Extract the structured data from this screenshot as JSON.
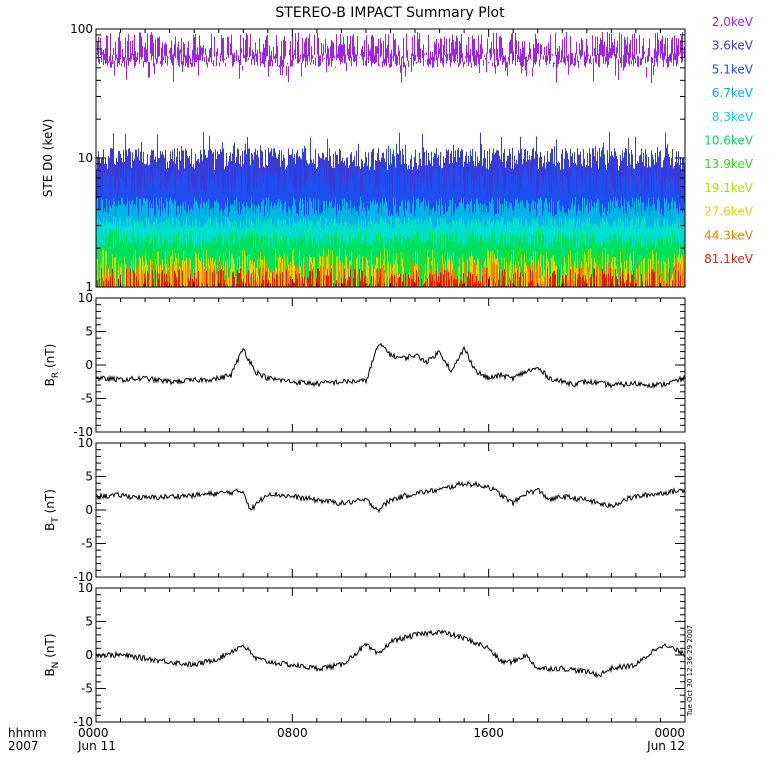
{
  "title": "STEREO-B IMPACT Summary Plot",
  "timestamp_stamp": "Tue Oct 30 12:36:29 2007",
  "x_axis": {
    "left_label_top": "hhmm",
    "left_label_bottom": "2007",
    "ticks": [
      {
        "t": 0,
        "top": "0000",
        "bottom": "Jun 11"
      },
      {
        "t": 8,
        "top": "0800",
        "bottom": ""
      },
      {
        "t": 16,
        "top": "1600",
        "bottom": ""
      },
      {
        "t": 24,
        "top": "0000",
        "bottom": "Jun 12"
      }
    ],
    "range_hours": [
      0,
      24
    ]
  },
  "chart_data": [
    {
      "type": "line",
      "ylabel": "STE D0 (keV)",
      "yscale": "log",
      "ylim": [
        1,
        100
      ],
      "yticks": [
        "1",
        "10",
        "100"
      ],
      "legend_placement": "right",
      "series": [
        {
          "name": "2.0keV",
          "color": "#a020f0",
          "level_range": [
            50,
            95
          ]
        },
        {
          "name": "3.6keV",
          "color": "#3a3ad8",
          "level_range": [
            8,
            12
          ]
        },
        {
          "name": "5.1keV",
          "color": "#1e4ef0",
          "level_range": [
            5,
            9
          ]
        },
        {
          "name": "6.7keV",
          "color": "#00b4e6",
          "level_range": [
            3.5,
            5
          ]
        },
        {
          "name": "8.3keV",
          "color": "#00e0d0",
          "level_range": [
            2.8,
            3.5
          ]
        },
        {
          "name": "10.6keV",
          "color": "#00e060",
          "level_range": [
            2,
            2.8
          ]
        },
        {
          "name": "13.9keV",
          "color": "#30e020",
          "level_range": [
            1,
            2
          ]
        },
        {
          "name": "19.1keV",
          "color": "#b0e000",
          "level_range": [
            1,
            2
          ]
        },
        {
          "name": "27.6keV",
          "color": "#f0d000",
          "level_range": [
            1,
            1.8
          ]
        },
        {
          "name": "44.3keV",
          "color": "#f08000",
          "level_range": [
            1,
            1.6
          ]
        },
        {
          "name": "81.1keV",
          "color": "#e02000",
          "level_range": [
            1,
            1.4
          ]
        }
      ]
    },
    {
      "type": "line",
      "ylabel_main": "B",
      "ylabel_sub": "R",
      "ylabel_unit": "(nT)",
      "ylim": [
        -10,
        10
      ],
      "yticks": [
        "10",
        "5",
        "0",
        "-5",
        "-10"
      ],
      "series": [
        {
          "x": [
            0,
            1,
            2,
            3,
            4,
            5,
            5.5,
            6,
            6.2,
            6.5,
            7,
            8,
            9,
            10,
            11,
            11.5,
            11.8,
            12,
            12.5,
            13,
            13.5,
            14,
            14.5,
            15,
            15.5,
            16,
            16.5,
            17,
            17.5,
            18,
            18.5,
            19,
            19.5,
            20,
            21,
            22,
            23,
            24
          ],
          "y": [
            -2,
            -2.2,
            -2,
            -2.5,
            -2.3,
            -2,
            -1.5,
            2.5,
            1,
            -1,
            -2,
            -2.5,
            -2.8,
            -2.5,
            -2.4,
            3,
            2.5,
            1.5,
            1,
            1.5,
            0.5,
            2,
            -1,
            2.5,
            -1,
            -2,
            -1.5,
            -2,
            -1,
            -0.5,
            -2,
            -2.5,
            -2.8,
            -2.5,
            -3,
            -2.8,
            -3,
            -2
          ]
        }
      ]
    },
    {
      "type": "line",
      "ylabel_main": "B",
      "ylabel_sub": "T",
      "ylabel_unit": "(nT)",
      "ylim": [
        -10,
        10
      ],
      "yticks": [
        "10",
        "5",
        "0",
        "-5",
        "-10"
      ],
      "series": [
        {
          "x": [
            0,
            1,
            2,
            3,
            4,
            5,
            6,
            6.3,
            7,
            8,
            9,
            10,
            11,
            11.5,
            12,
            12.5,
            13,
            14,
            15,
            16,
            17,
            17.5,
            18,
            18.5,
            19,
            20,
            21,
            21.5,
            22,
            23,
            24
          ],
          "y": [
            2,
            2.2,
            1.8,
            2,
            2.2,
            2.5,
            2.8,
            0,
            2.5,
            2,
            1.5,
            1,
            1.5,
            0,
            1.5,
            2,
            2.5,
            3,
            4,
            3.5,
            1,
            2.5,
            3,
            1.5,
            2,
            1.5,
            0.5,
            1.5,
            2,
            2.5,
            3
          ]
        }
      ]
    },
    {
      "type": "line",
      "ylabel_main": "B",
      "ylabel_sub": "N",
      "ylabel_unit": "(nT)",
      "ylim": [
        -10,
        10
      ],
      "yticks": [
        "10",
        "5",
        "0",
        "-5",
        "-10"
      ],
      "series": [
        {
          "x": [
            0,
            1,
            2,
            3,
            4,
            5,
            6,
            6.5,
            7,
            8,
            9,
            10,
            11,
            11.5,
            12,
            13,
            14,
            15,
            16,
            16.5,
            17,
            17.5,
            18,
            19,
            20,
            20.5,
            21,
            22,
            22.5,
            23,
            23.5,
            24
          ],
          "y": [
            0,
            0,
            -0.5,
            -1,
            -1.5,
            -0.5,
            1.5,
            -0.5,
            -1,
            -1.5,
            -2,
            -1.5,
            1.5,
            0,
            2,
            3,
            3.5,
            2.5,
            1,
            -1,
            -1,
            0,
            -2,
            -2,
            -2.5,
            -3,
            -2,
            -1.5,
            0,
            1.5,
            1,
            0
          ]
        }
      ]
    }
  ]
}
